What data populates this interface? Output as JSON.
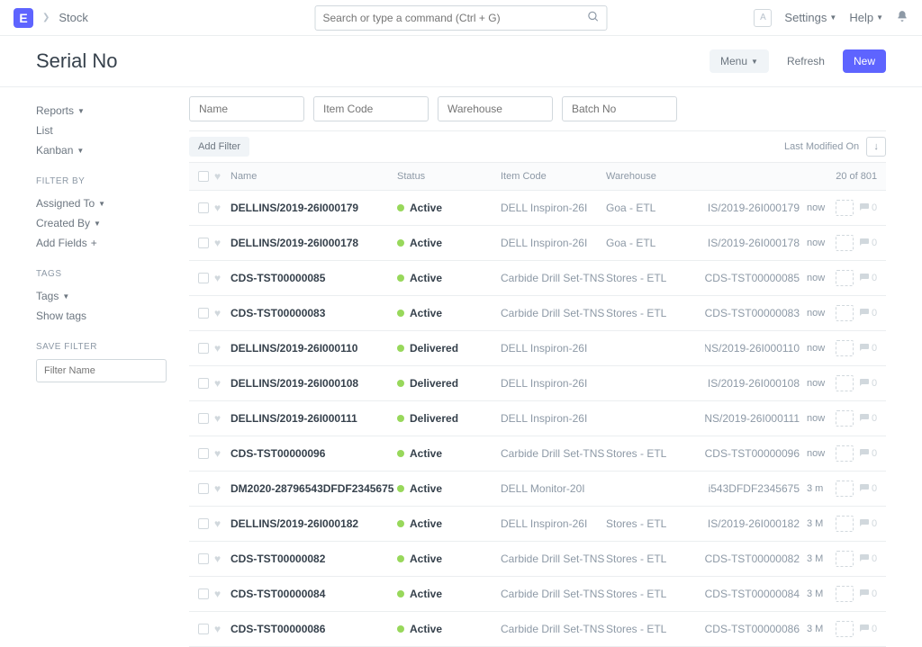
{
  "navbar": {
    "logo_letter": "E",
    "breadcrumb": "Stock",
    "search_placeholder": "Search or type a command (Ctrl + G)",
    "avatar_letter": "A",
    "settings_label": "Settings",
    "help_label": "Help"
  },
  "page": {
    "title": "Serial No",
    "menu_btn": "Menu",
    "refresh_btn": "Refresh",
    "new_btn": "New"
  },
  "sidebar": {
    "reports": "Reports",
    "list": "List",
    "kanban": "Kanban",
    "filter_by_heading": "FILTER BY",
    "assigned_to": "Assigned To",
    "created_by": "Created By",
    "add_fields": "Add Fields",
    "tags_heading": "TAGS",
    "tags": "Tags",
    "show_tags": "Show tags",
    "save_filter_heading": "SAVE FILTER",
    "filter_name_placeholder": "Filter Name"
  },
  "filters": {
    "name": "Name",
    "item_code": "Item Code",
    "warehouse": "Warehouse",
    "batch_no": "Batch No",
    "add_filter": "Add Filter",
    "sort_label": "Last Modified On"
  },
  "list": {
    "col_name": "Name",
    "col_status": "Status",
    "col_item": "Item Code",
    "col_wh": "Warehouse",
    "count": "20 of 801",
    "rows": [
      {
        "name": "DELLINS/2019-26I000179",
        "status": "Active",
        "item": "DELL Inspiron-26I",
        "wh": "Goa - ETL",
        "serial": "IS/2019-26I000179",
        "time": "now"
      },
      {
        "name": "DELLINS/2019-26I000178",
        "status": "Active",
        "item": "DELL Inspiron-26I",
        "wh": "Goa - ETL",
        "serial": "IS/2019-26I000178",
        "time": "now"
      },
      {
        "name": "CDS-TST00000085",
        "status": "Active",
        "item": "Carbide Drill Set-TNS",
        "wh": "Stores - ETL",
        "serial": "CDS-TST00000085",
        "time": "now"
      },
      {
        "name": "CDS-TST00000083",
        "status": "Active",
        "item": "Carbide Drill Set-TNS",
        "wh": "Stores - ETL",
        "serial": "CDS-TST00000083",
        "time": "now"
      },
      {
        "name": "DELLINS/2019-26I000110",
        "status": "Delivered",
        "item": "DELL Inspiron-26I",
        "wh": "",
        "serial": "NS/2019-26I000110",
        "time": "now"
      },
      {
        "name": "DELLINS/2019-26I000108",
        "status": "Delivered",
        "item": "DELL Inspiron-26I",
        "wh": "",
        "serial": "IS/2019-26I000108",
        "time": "now"
      },
      {
        "name": "DELLINS/2019-26I000111",
        "status": "Delivered",
        "item": "DELL Inspiron-26I",
        "wh": "",
        "serial": "NS/2019-26I000111",
        "time": "now"
      },
      {
        "name": "CDS-TST00000096",
        "status": "Active",
        "item": "Carbide Drill Set-TNS",
        "wh": "Stores - ETL",
        "serial": "CDS-TST00000096",
        "time": "now"
      },
      {
        "name": "DM2020-28796543DFDF2345675",
        "status": "Active",
        "item": "DELL Monitor-20I",
        "wh": "",
        "serial": "i543DFDF2345675",
        "time": "3 m"
      },
      {
        "name": "DELLINS/2019-26I000182",
        "status": "Active",
        "item": "DELL Inspiron-26I",
        "wh": "Stores - ETL",
        "serial": "IS/2019-26I000182",
        "time": "3 M"
      },
      {
        "name": "CDS-TST00000082",
        "status": "Active",
        "item": "Carbide Drill Set-TNS",
        "wh": "Stores - ETL",
        "serial": "CDS-TST00000082",
        "time": "3 M"
      },
      {
        "name": "CDS-TST00000084",
        "status": "Active",
        "item": "Carbide Drill Set-TNS",
        "wh": "Stores - ETL",
        "serial": "CDS-TST00000084",
        "time": "3 M"
      },
      {
        "name": "CDS-TST00000086",
        "status": "Active",
        "item": "Carbide Drill Set-TNS",
        "wh": "Stores - ETL",
        "serial": "CDS-TST00000086",
        "time": "3 M"
      }
    ]
  }
}
